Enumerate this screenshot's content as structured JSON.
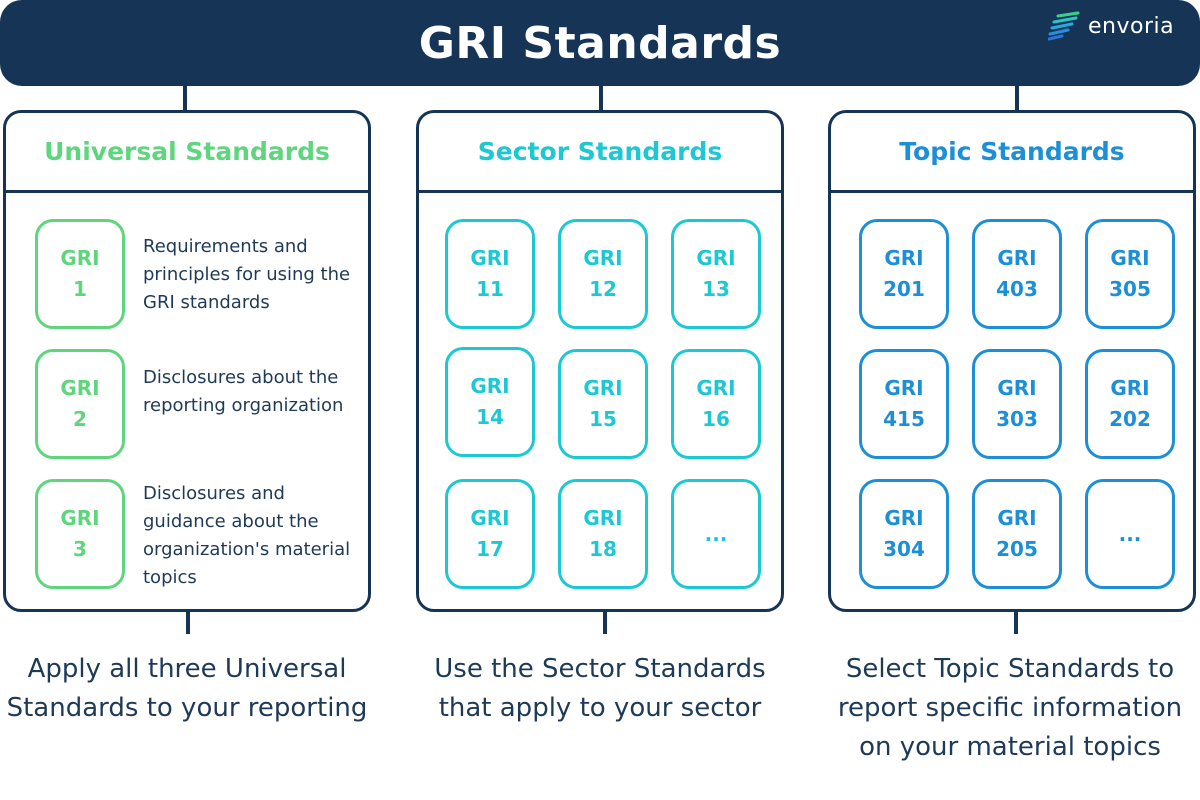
{
  "header": {
    "title": "GRI Standards",
    "logo_text": "envoria"
  },
  "colors": {
    "navy": "#163556",
    "universal": "#5fd67e",
    "sector": "#1cc9d2",
    "topic": "#1c8fd6",
    "text": "#1e3a57"
  },
  "columns": [
    {
      "title": "Universal Standards",
      "items": [
        {
          "label": "GRI",
          "number": "1",
          "description": "Requirements and principles for using the GRI standards"
        },
        {
          "label": "GRI",
          "number": "2",
          "description": "Disclosures about the reporting organization"
        },
        {
          "label": "GRI",
          "number": "3",
          "description": "Disclosures and guidance about the organization's material topics"
        }
      ],
      "caption": "Apply all three Universal Standards to your reporting"
    },
    {
      "title": "Sector Standards",
      "items": [
        {
          "label": "GRI",
          "number": "11"
        },
        {
          "label": "GRI",
          "number": "12"
        },
        {
          "label": "GRI",
          "number": "13"
        },
        {
          "label": "GRI",
          "number": "14"
        },
        {
          "label": "GRI",
          "number": "15"
        },
        {
          "label": "GRI",
          "number": "16"
        },
        {
          "label": "GRI",
          "number": "17"
        },
        {
          "label": "GRI",
          "number": "18"
        },
        {
          "label": "...",
          "number": ""
        }
      ],
      "caption": "Use the Sector Standards that apply to your sector"
    },
    {
      "title": "Topic Standards",
      "items": [
        {
          "label": "GRI",
          "number": "201"
        },
        {
          "label": "GRI",
          "number": "403"
        },
        {
          "label": "GRI",
          "number": "305"
        },
        {
          "label": "GRI",
          "number": "415"
        },
        {
          "label": "GRI",
          "number": "303"
        },
        {
          "label": "GRI",
          "number": "202"
        },
        {
          "label": "GRI",
          "number": "304"
        },
        {
          "label": "GRI",
          "number": "205"
        },
        {
          "label": "...",
          "number": ""
        }
      ],
      "caption": "Select Topic Standards to report specific information on your material topics"
    }
  ]
}
